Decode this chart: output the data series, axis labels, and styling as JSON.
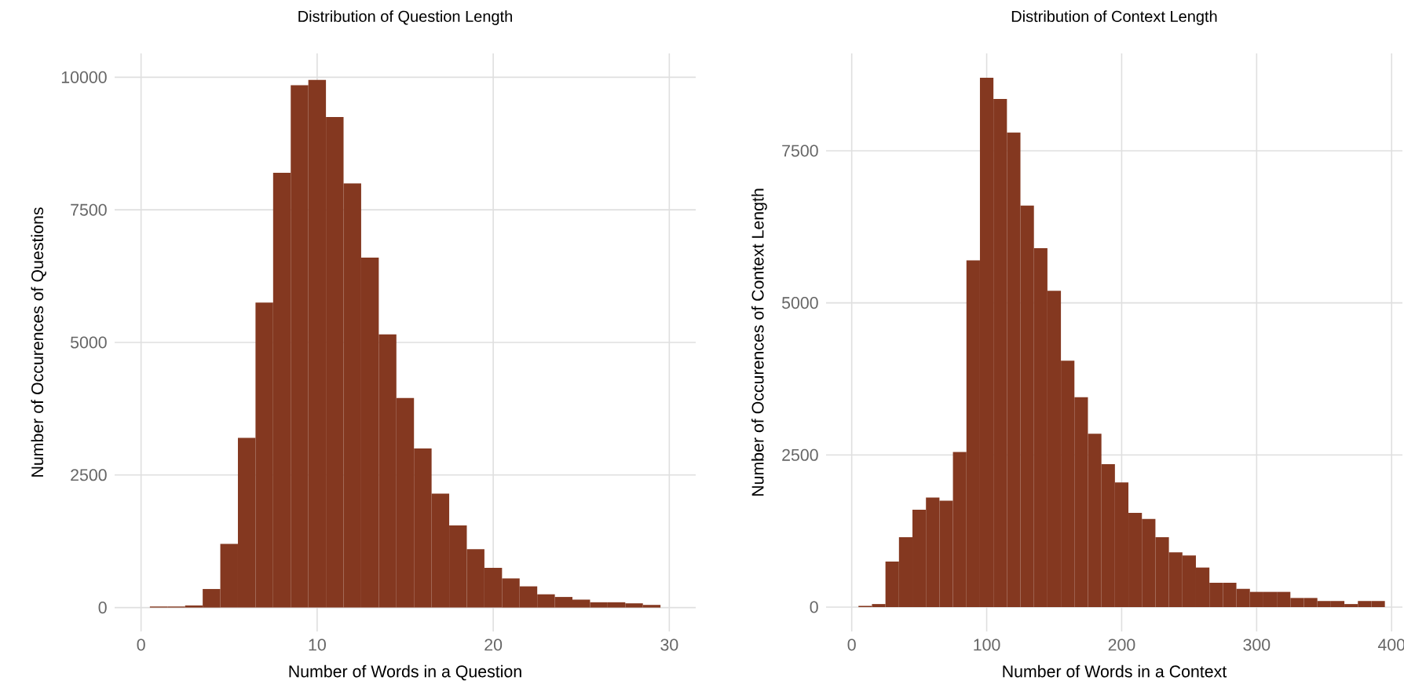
{
  "chart_data": [
    {
      "type": "histogram",
      "title": "Distribution of Question Length",
      "xlabel": "Number of Words in a Question",
      "ylabel": "Number of Occurences of Questions",
      "color": "#843820",
      "grid": true,
      "bins": [
        0.5,
        1.5,
        2.5,
        3.5,
        4.5,
        5.5,
        6.5,
        7.5,
        8.5,
        9.5,
        10.5,
        11.5,
        12.5,
        13.5,
        14.5,
        15.5,
        16.5,
        17.5,
        18.5,
        19.5,
        20.5,
        21.5,
        22.5,
        23.5,
        24.5,
        25.5,
        26.5,
        27.5,
        28.5,
        29.5
      ],
      "values": [
        20,
        20,
        40,
        350,
        1200,
        3200,
        5750,
        8200,
        9850,
        9950,
        9250,
        8000,
        6600,
        5150,
        3950,
        3000,
        2150,
        1550,
        1100,
        750,
        550,
        400,
        250,
        200,
        150,
        100,
        100,
        80,
        50
      ],
      "xlim": [
        -1.5,
        31.5
      ],
      "ylim": [
        -450,
        10450
      ],
      "xticks": [
        0,
        10,
        20,
        30
      ],
      "yticks": [
        0,
        2500,
        5000,
        7500,
        10000
      ]
    },
    {
      "type": "histogram",
      "title": "Distribution of Context Length",
      "xlabel": "Number of Words in a Context",
      "ylabel": "Number of Occurences of Context Length",
      "color": "#843820",
      "grid": true,
      "bins": [
        5,
        15,
        25,
        35,
        45,
        55,
        65,
        75,
        85,
        95,
        105,
        115,
        125,
        135,
        145,
        155,
        165,
        175,
        185,
        195,
        205,
        215,
        225,
        235,
        245,
        255,
        265,
        275,
        285,
        295,
        305,
        315,
        325,
        335,
        345,
        355,
        365,
        375,
        385,
        395
      ],
      "values": [
        20,
        50,
        750,
        1150,
        1600,
        1800,
        1750,
        2550,
        5700,
        8700,
        8350,
        7800,
        6600,
        5900,
        5200,
        4050,
        3450,
        2850,
        2350,
        2050,
        1550,
        1450,
        1150,
        900,
        850,
        650,
        400,
        400,
        300,
        250,
        250,
        250,
        150,
        150,
        100,
        100,
        50,
        100,
        100
      ],
      "xlim": [
        -19,
        408
      ],
      "ylim": [
        -400,
        9100
      ],
      "xticks": [
        0,
        100,
        200,
        300,
        400
      ],
      "yticks": [
        0,
        2500,
        5000,
        7500
      ]
    }
  ]
}
